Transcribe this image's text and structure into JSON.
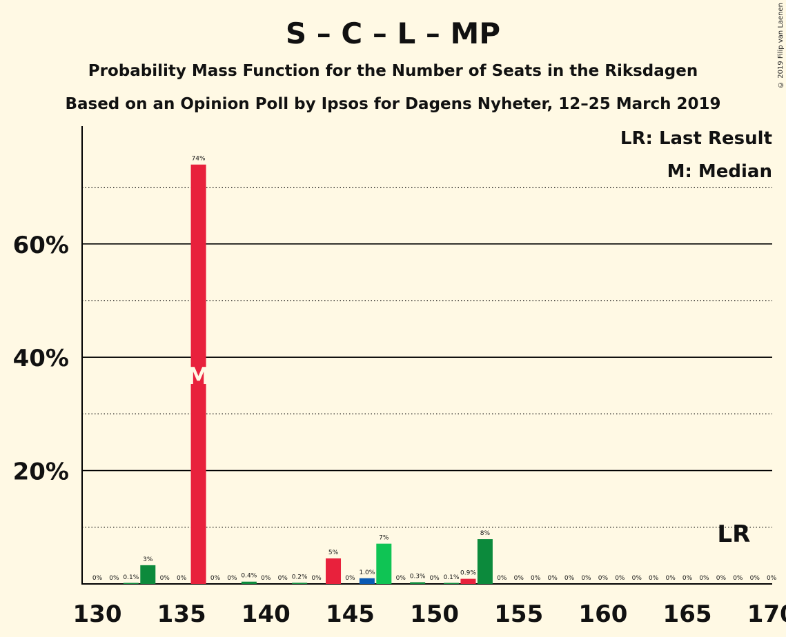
{
  "title": "S – C – L – MP",
  "subtitle1": "Probability Mass Function for the Number of Seats in the Riksdagen",
  "subtitle2": "Based on an Opinion Poll by Ipsos for Dagens Nyheter, 12–25 March 2019",
  "copyright": "© 2019 Filip van Laenen",
  "legend": {
    "last_result": "LR: Last Result",
    "median": "M: Median"
  },
  "colors": {
    "red": "#e8213c",
    "green": "#0c8a3c",
    "lightgreen": "#0fc454",
    "blue": "#0a5ab4",
    "background": "#fff9e4"
  },
  "chart_data": {
    "type": "bar",
    "x": [
      130,
      131,
      132,
      133,
      134,
      135,
      136,
      137,
      138,
      139,
      140,
      141,
      142,
      143,
      144,
      145,
      146,
      147,
      148,
      149,
      150,
      151,
      152,
      153,
      154,
      155,
      156,
      157,
      158,
      159,
      160,
      161,
      162,
      163,
      164,
      165,
      166,
      167,
      168,
      169,
      170
    ],
    "values": [
      0,
      0,
      0.1,
      3.3,
      0,
      0,
      74,
      0,
      0,
      0.4,
      0,
      0,
      0.2,
      0,
      4.5,
      0,
      1.0,
      7.1,
      0,
      0.3,
      0,
      0.1,
      0.9,
      7.9,
      0,
      0,
      0,
      0,
      0,
      0,
      0,
      0,
      0,
      0,
      0,
      0,
      0,
      0,
      0,
      0,
      0
    ],
    "labels": [
      "0%",
      "0%",
      "0.1%",
      "3%",
      "0%",
      "0%",
      "74%",
      "0%",
      "0%",
      "0.4%",
      "0%",
      "0%",
      "0.2%",
      "0%",
      "5%",
      "0%",
      "1.0%",
      "7%",
      "0%",
      "0.3%",
      "0%",
      "0.1%",
      "0.9%",
      "8%",
      "0%",
      "0%",
      "0%",
      "0%",
      "0%",
      "0%",
      "0%",
      "0%",
      "0%",
      "0%",
      "0%",
      "0%",
      "0%",
      "0%",
      "0%",
      "0%",
      "0%"
    ],
    "colors": [
      "green",
      "green",
      "green",
      "green",
      "green",
      "green",
      "red",
      "green",
      "green",
      "green",
      "green",
      "green",
      "green",
      "green",
      "red",
      "green",
      "blue",
      "lightgreen",
      "green",
      "green",
      "green",
      "green",
      "red",
      "green",
      "green",
      "green",
      "green",
      "green",
      "green",
      "green",
      "green",
      "green",
      "green",
      "green",
      "green",
      "green",
      "green",
      "green",
      "green",
      "green",
      "green"
    ],
    "xticks": [
      130,
      135,
      140,
      145,
      150,
      155,
      160,
      165,
      170
    ],
    "xtick_labels": [
      "130",
      "135",
      "140",
      "145",
      "150",
      "155",
      "160",
      "165",
      "170"
    ],
    "yticks": [
      20,
      40,
      60
    ],
    "ytick_labels": [
      "20%",
      "40%",
      "60%"
    ],
    "ylim": [
      0,
      81
    ],
    "xlim": [
      129.1,
      170.4
    ],
    "minor_grid": [
      10,
      30,
      50,
      70
    ],
    "median": {
      "x": 136,
      "label": "M",
      "y": 37
    },
    "last_result": {
      "x": 168,
      "label": "LR"
    }
  }
}
